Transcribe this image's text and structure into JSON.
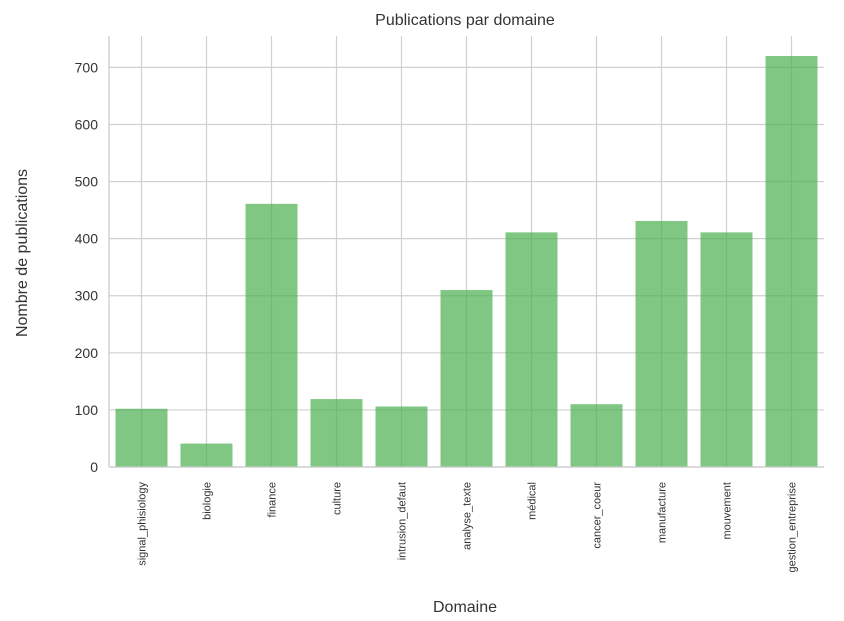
{
  "chart_data": {
    "type": "bar",
    "title": "Publications par domaine",
    "xlabel": "Domaine",
    "ylabel": "Nombre de publications",
    "categories": [
      "signal_phisiology",
      "biologie",
      "finance",
      "culture",
      "intrusion_defaut",
      "analyse_texte",
      "médical",
      "cancer_coeur",
      "manufacture",
      "mouvement",
      "gestion_entreprise"
    ],
    "values": [
      102,
      41,
      461,
      119,
      106,
      310,
      411,
      110,
      431,
      411,
      720
    ],
    "ylim": [
      0,
      755
    ],
    "yticks": [
      0,
      100,
      200,
      300,
      400,
      500,
      600,
      700
    ],
    "grid": true,
    "bar_color": "#4caf50",
    "bar_opacity": 0.7,
    "background": "#ffffff"
  }
}
